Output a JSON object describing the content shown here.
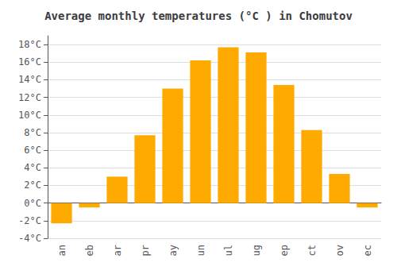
{
  "chart_data": {
    "type": "bar",
    "title": "Average monthly temperatures (°C ) in Chomutov",
    "categories": [
      "an",
      "eb",
      "ar",
      "pr",
      "ay",
      "un",
      "ul",
      "ug",
      "ep",
      "ct",
      "ov",
      "ec"
    ],
    "values": [
      -2.3,
      -0.5,
      3.0,
      7.7,
      13.0,
      16.2,
      17.7,
      17.1,
      13.4,
      8.3,
      3.3,
      -0.5
    ],
    "color": "#FFAA00",
    "ylim": [
      -4,
      19
    ],
    "yticks": [
      {
        "value": -4,
        "label": "-4°C"
      },
      {
        "value": -2,
        "label": "-2°C"
      },
      {
        "value": 0,
        "label": "0°C"
      },
      {
        "value": 2,
        "label": "2°C"
      },
      {
        "value": 4,
        "label": "4°C"
      },
      {
        "value": 6,
        "label": "6°C"
      },
      {
        "value": 8,
        "label": "8°C"
      },
      {
        "value": 10,
        "label": "10°C"
      },
      {
        "value": 12,
        "label": "12°C"
      },
      {
        "value": 14,
        "label": "14°C"
      },
      {
        "value": 16,
        "label": "16°C"
      },
      {
        "value": 18,
        "label": "18°C"
      }
    ],
    "grid": true
  }
}
